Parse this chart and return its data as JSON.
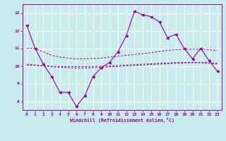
{
  "xlabel": "Windchill (Refroidissement éolien,°C)",
  "xlim": [
    -0.5,
    23.5
  ],
  "ylim": [
    7.5,
    13.5
  ],
  "yticks": [
    8,
    9,
    10,
    11,
    12,
    13
  ],
  "xticks": [
    0,
    1,
    2,
    3,
    4,
    5,
    6,
    7,
    8,
    9,
    10,
    11,
    12,
    13,
    14,
    15,
    16,
    17,
    18,
    19,
    20,
    21,
    22,
    23
  ],
  "background_color": "#c8ecec",
  "grid_color": "#ffffff",
  "line_color": "#990099",
  "series": {
    "main": [
      12.3,
      11.0,
      10.1,
      9.4,
      8.5,
      8.5,
      7.7,
      8.3,
      9.4,
      9.9,
      10.2,
      10.8,
      11.7,
      13.1,
      12.9,
      12.8,
      12.5,
      11.6,
      11.8,
      11.0,
      10.4,
      11.0,
      10.3,
      9.7
    ],
    "upper": [
      11.0,
      11.0,
      10.8,
      10.6,
      10.5,
      10.45,
      10.4,
      10.4,
      10.42,
      10.45,
      10.5,
      10.55,
      10.6,
      10.65,
      10.7,
      10.75,
      10.82,
      10.88,
      10.92,
      10.95,
      10.95,
      10.95,
      10.92,
      10.88
    ],
    "lower": [
      10.1,
      10.05,
      10.0,
      9.95,
      9.92,
      9.9,
      9.88,
      9.88,
      9.9,
      9.92,
      9.95,
      9.97,
      10.0,
      10.02,
      10.05,
      10.08,
      10.1,
      10.12,
      10.15,
      10.17,
      10.18,
      10.18,
      10.15,
      10.1
    ],
    "mid": [
      10.05,
      10.02,
      10.0,
      9.98,
      9.97,
      9.96,
      9.96,
      9.96,
      9.97,
      9.98,
      10.0,
      10.02,
      10.05,
      10.07,
      10.1,
      10.12,
      10.15,
      10.17,
      10.19,
      10.2,
      10.2,
      10.2,
      10.18,
      10.15
    ]
  }
}
